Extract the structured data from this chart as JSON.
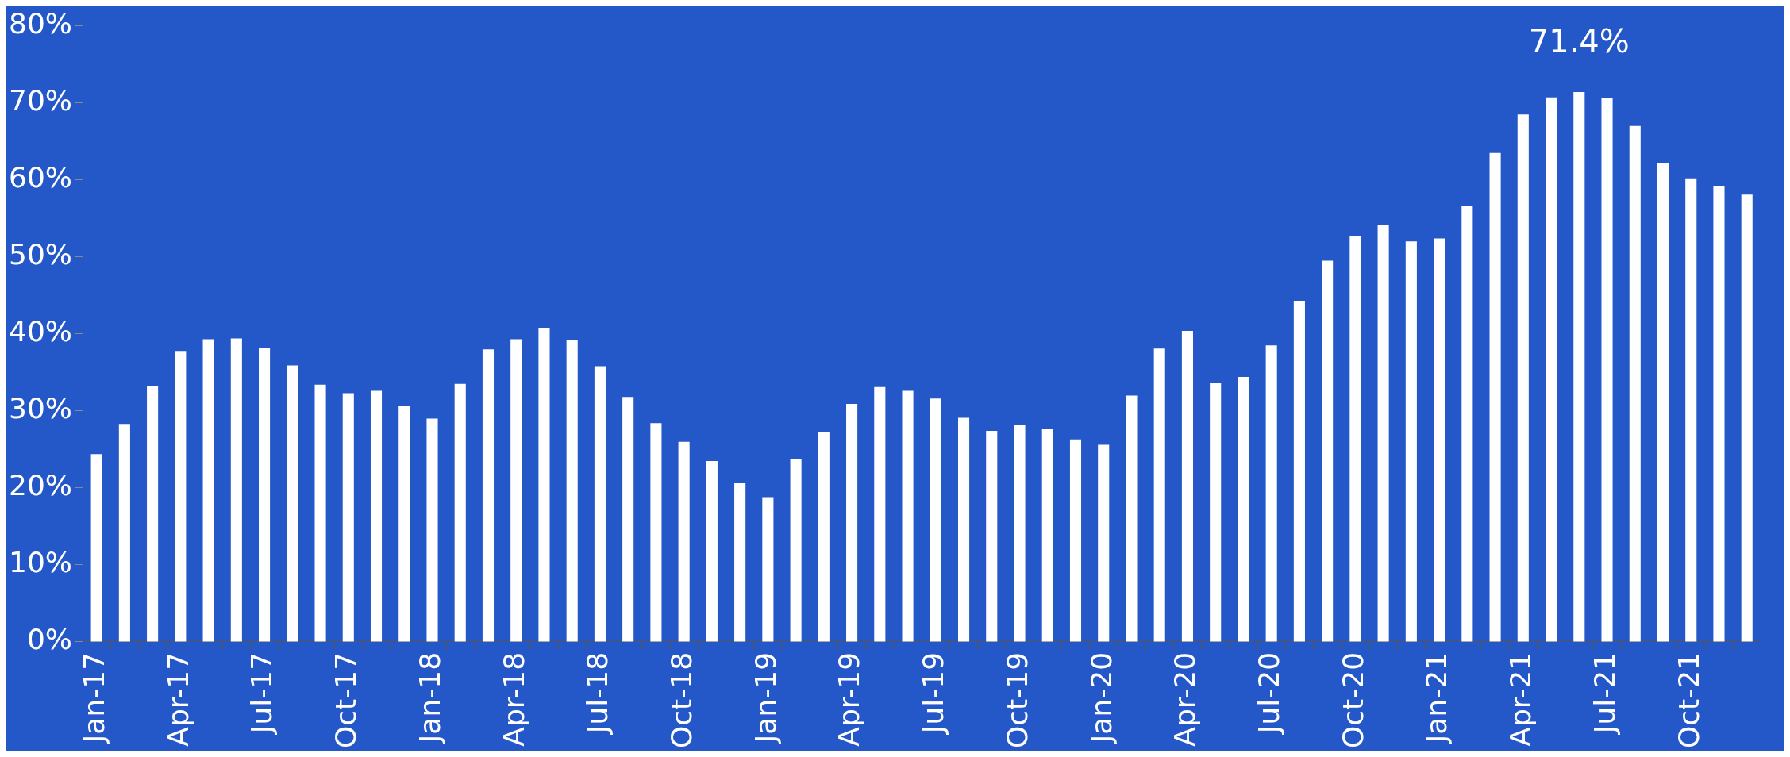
{
  "chart_data": {
    "type": "bar",
    "categories": [
      "Jan-17",
      null,
      null,
      "Apr-17",
      null,
      null,
      "Jul-17",
      null,
      null,
      "Oct-17",
      null,
      null,
      "Jan-18",
      null,
      null,
      "Apr-18",
      null,
      null,
      "Jul-18",
      null,
      null,
      "Oct-18",
      null,
      null,
      "Jan-19",
      null,
      null,
      "Apr-19",
      null,
      null,
      "Jul-19",
      null,
      null,
      "Oct-19",
      null,
      null,
      "Jan-20",
      null,
      null,
      "Apr-20",
      null,
      null,
      "Jul-20",
      null,
      null,
      "Oct-20",
      null,
      null,
      "Jan-21",
      null,
      null,
      "Apr-21",
      null,
      null,
      "Jul-21",
      null,
      null,
      "Oct-21",
      null,
      null
    ],
    "values": [
      24.4,
      28.3,
      33.2,
      37.8,
      39.3,
      39.4,
      38.2,
      35.9,
      33.4,
      32.3,
      32.6,
      30.6,
      29.0,
      33.5,
      38.0,
      39.3,
      40.8,
      39.2,
      35.8,
      31.8,
      28.4,
      26.0,
      23.5,
      20.6,
      18.8,
      23.8,
      27.2,
      30.9,
      33.1,
      32.6,
      31.6,
      29.1,
      27.4,
      28.2,
      27.6,
      26.3,
      25.6,
      32.0,
      38.1,
      40.4,
      33.6,
      34.4,
      38.5,
      44.3,
      49.5,
      52.7,
      54.2,
      52.0,
      52.4,
      56.6,
      63.5,
      68.5,
      70.7,
      71.4,
      70.6,
      67.0,
      62.2,
      60.2,
      59.2,
      58.1
    ],
    "value_labels": [
      null,
      null,
      null,
      null,
      null,
      null,
      null,
      null,
      null,
      null,
      null,
      null,
      null,
      null,
      null,
      null,
      null,
      null,
      null,
      null,
      null,
      null,
      null,
      null,
      null,
      null,
      null,
      null,
      null,
      null,
      null,
      null,
      null,
      null,
      null,
      null,
      null,
      null,
      null,
      null,
      null,
      null,
      null,
      null,
      null,
      null,
      null,
      null,
      null,
      null,
      null,
      null,
      null,
      "71.4%",
      null,
      null,
      null,
      null,
      null,
      null
    ],
    "color": "#ffffff",
    "ylim": [
      0,
      80
    ],
    "yticks": [
      {
        "value": 0,
        "label": "0%"
      },
      {
        "value": 10,
        "label": "10%"
      },
      {
        "value": 20,
        "label": "20%"
      },
      {
        "value": 30,
        "label": "30%"
      },
      {
        "value": 40,
        "label": "40%"
      },
      {
        "value": 50,
        "label": "50%"
      },
      {
        "value": 60,
        "label": "60%"
      },
      {
        "value": 70,
        "label": "70%"
      },
      {
        "value": 80,
        "label": "80%"
      }
    ],
    "grid": false,
    "legend": false
  }
}
